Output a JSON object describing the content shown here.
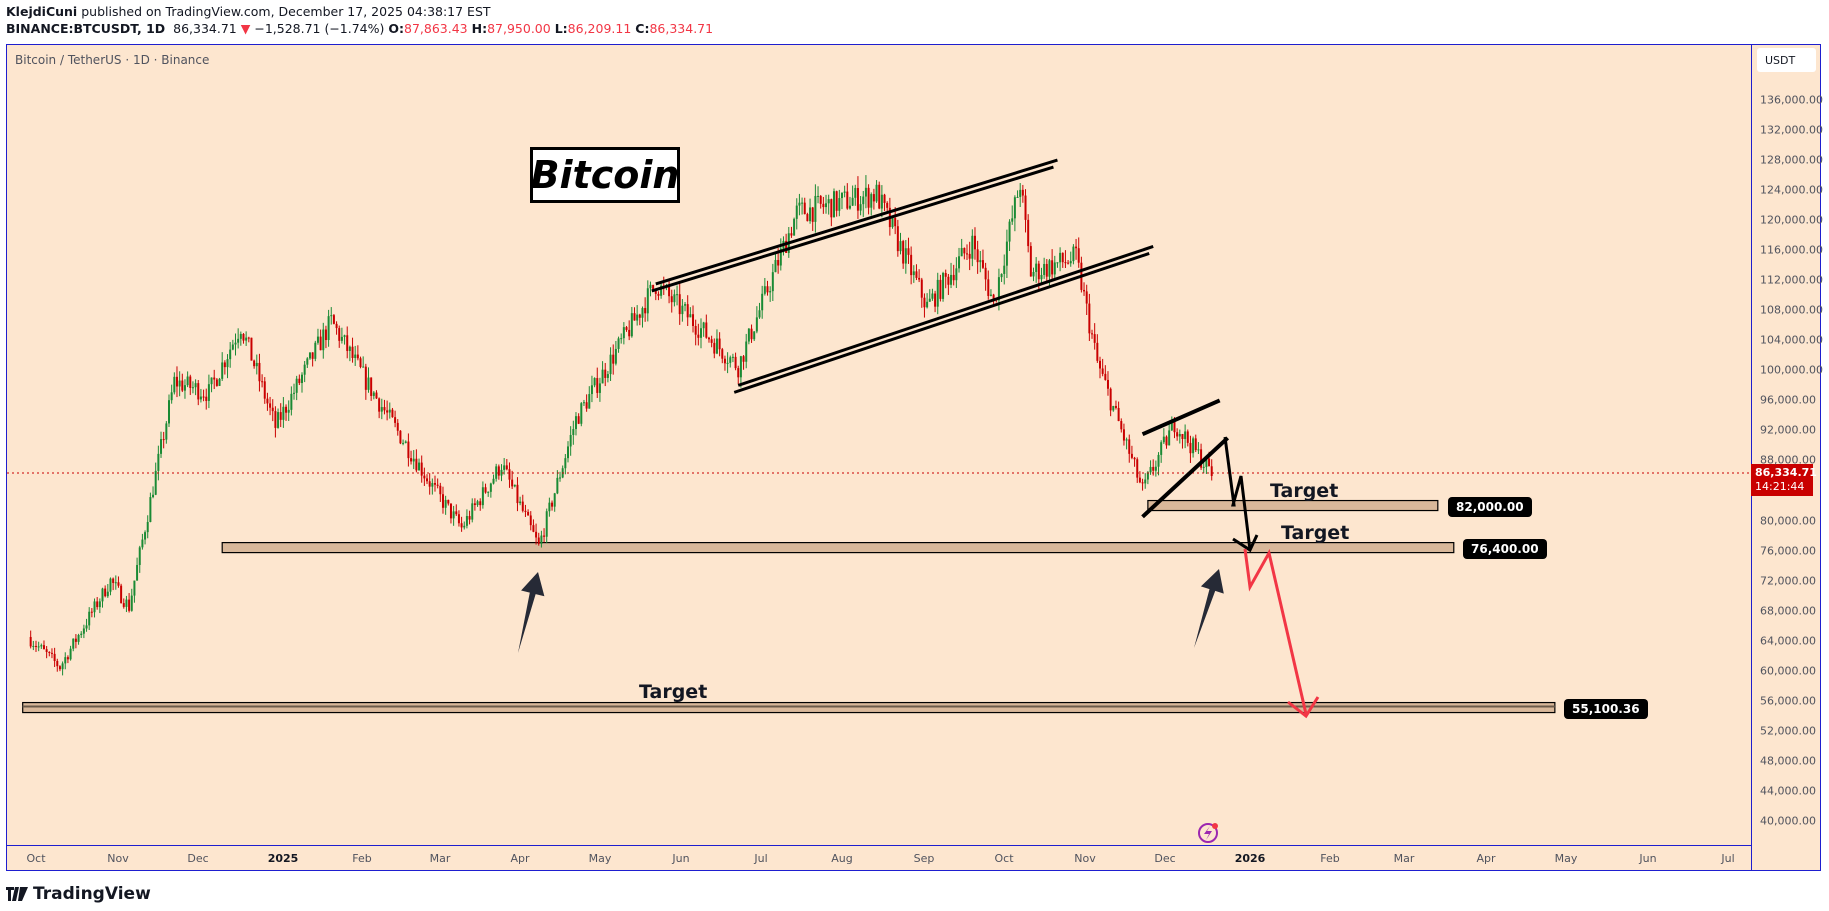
{
  "header": {
    "author": "KlejdiCuni",
    "published_text": " published on TradingView.com, December 17, 2025 04:38:17 EST",
    "symbol": "BINANCE:BTCUSDT, 1D",
    "last": "86,334.71",
    "change_arrow": "▼",
    "change": "−1,528.71 (−1.74%)",
    "o_label": "O:",
    "o": "87,863.43",
    "h_label": "H:",
    "h": "87,950.00",
    "l_label": "L:",
    "l": "86,209.11",
    "c_label": "C:",
    "c": "86,334.71"
  },
  "legend": "Bitcoin / TetherUS · 1D · Binance",
  "currency_button": "USDT",
  "title_box": "Bitcoin",
  "current_price": {
    "price": "86,334.71",
    "countdown": "14:21:44"
  },
  "targets": [
    {
      "label": "Target",
      "price_tag": "82,000.00"
    },
    {
      "label": "Target",
      "price_tag": "76,400.00"
    },
    {
      "label": "Target",
      "price_tag": "55,100.36"
    }
  ],
  "footer_brand": "TradingView",
  "colors": {
    "background": "#fde6cf",
    "up": "#1a8a34",
    "down": "#c90000",
    "border": "#1e1ecf",
    "zone_fill": "#d9b89a",
    "projection": "#f23645"
  },
  "chart_data": {
    "type": "candlestick",
    "title": "Bitcoin / TetherUS · 1D · Binance",
    "xlabel": "",
    "ylabel": "USDT",
    "ylim": [
      38000,
      140000
    ],
    "grid": false,
    "price_ticks": [
      "136,000.00",
      "132,000.00",
      "128,000.00",
      "124,000.00",
      "120,000.00",
      "116,000.00",
      "112,000.00",
      "108,000.00",
      "104,000.00",
      "100,000.00",
      "96,000.00",
      "92,000.00",
      "88,000.00",
      "80,000.00",
      "76,000.00",
      "72,000.00",
      "68,000.00",
      "64,000.00",
      "60,000.00",
      "56,000.00",
      "52,000.00",
      "48,000.00",
      "44,000.00",
      "40,000.00"
    ],
    "time_ticks": [
      "Oct",
      "Nov",
      "Dec",
      "2025",
      "Feb",
      "Mar",
      "Apr",
      "May",
      "Jun",
      "Jul",
      "Aug",
      "Sep",
      "Oct",
      "Nov",
      "Dec",
      "2026",
      "Feb",
      "Mar",
      "Apr",
      "May",
      "Jun",
      "Jul"
    ],
    "keypoints": [
      {
        "date": "2024-09-28",
        "close": 64500
      },
      {
        "date": "2024-10-10",
        "close": 60500
      },
      {
        "date": "2024-10-29",
        "close": 72000
      },
      {
        "date": "2024-11-05",
        "close": 68500
      },
      {
        "date": "2024-11-22",
        "close": 98500
      },
      {
        "date": "2024-12-05",
        "close": 97000
      },
      {
        "date": "2024-12-17",
        "close": 106000
      },
      {
        "date": "2024-12-30",
        "close": 92500
      },
      {
        "date": "2025-01-20",
        "close": 106500
      },
      {
        "date": "2025-02-03",
        "close": 98000
      },
      {
        "date": "2025-02-28",
        "close": 84000
      },
      {
        "date": "2025-03-10",
        "close": 79000
      },
      {
        "date": "2025-03-25",
        "close": 87500
      },
      {
        "date": "2025-04-08",
        "close": 76500
      },
      {
        "date": "2025-04-22",
        "close": 93500
      },
      {
        "date": "2025-05-22",
        "close": 111500
      },
      {
        "date": "2025-06-22",
        "close": 100500
      },
      {
        "date": "2025-07-14",
        "close": 121000
      },
      {
        "date": "2025-08-13",
        "close": 123500
      },
      {
        "date": "2025-09-01",
        "close": 108500
      },
      {
        "date": "2025-09-18",
        "close": 117000
      },
      {
        "date": "2025-09-26",
        "close": 109000
      },
      {
        "date": "2025-10-06",
        "close": 125000
      },
      {
        "date": "2025-10-10",
        "close": 113000
      },
      {
        "date": "2025-10-27",
        "close": 115000
      },
      {
        "date": "2025-11-04",
        "close": 101000
      },
      {
        "date": "2025-11-21",
        "close": 84000
      },
      {
        "date": "2025-12-03",
        "close": 93000
      },
      {
        "date": "2025-12-17",
        "close": 86334.71
      }
    ],
    "annotations": {
      "channel_upper": [
        {
          "date": "2025-05-22",
          "price": 111500
        },
        {
          "date": "2025-10-20",
          "price": 128000
        }
      ],
      "channel_lower": [
        {
          "date": "2025-06-22",
          "price": 98000
        },
        {
          "date": "2025-11-25",
          "price": 116500
        }
      ],
      "wedge_upper": [
        {
          "date": "2025-11-21",
          "price": 91500
        },
        {
          "date": "2025-12-20",
          "price": 96000
        }
      ],
      "wedge_lower": [
        {
          "date": "2025-11-21",
          "price": 80500
        },
        {
          "date": "2025-12-23",
          "price": 91000
        }
      ],
      "zones": [
        {
          "label": "Target",
          "price": 82000,
          "from": "2025-11-23",
          "to": "2026-03-12"
        },
        {
          "label": "Target",
          "price": 76400,
          "from": "2024-12-10",
          "to": "2026-03-18"
        },
        {
          "label": "Target",
          "price": 55100.36,
          "from": "2024-09-26",
          "to": "2026-04-25"
        }
      ],
      "projection_black": [
        86000,
        90000,
        81500,
        76400
      ],
      "projection_red": [
        76400,
        70800,
        76400,
        54500
      ],
      "arrows_up": [
        "2025-04-05",
        "2025-12-25"
      ]
    }
  }
}
